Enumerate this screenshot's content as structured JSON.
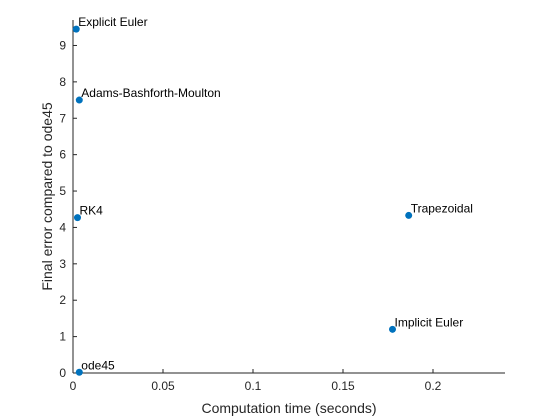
{
  "chart_data": {
    "type": "scatter",
    "title": "",
    "xlabel": "Computation time (seconds)",
    "ylabel": "Final error compared to ode45",
    "xlim": [
      0,
      0.24
    ],
    "ylim": [
      0,
      9.7
    ],
    "x_ticks": [
      0,
      0.05,
      0.1,
      0.15,
      0.2
    ],
    "x_tick_labels": [
      "0",
      "0.05",
      "0.1",
      "0.15",
      "0.2"
    ],
    "y_ticks": [
      0,
      1,
      2,
      3,
      4,
      5,
      6,
      7,
      8,
      9
    ],
    "y_tick_labels": [
      "0",
      "1",
      "2",
      "3",
      "4",
      "5",
      "6",
      "7",
      "8",
      "9"
    ],
    "grid": false,
    "marker_color": "#0072BD",
    "points": [
      {
        "label": "Explicit Euler",
        "x": 0.0018,
        "y": 9.45
      },
      {
        "label": "Adams-Bashforth-Moulton",
        "x": 0.0035,
        "y": 7.5
      },
      {
        "label": "RK4",
        "x": 0.0025,
        "y": 4.27
      },
      {
        "label": "Trapezoidal",
        "x": 0.1865,
        "y": 4.33
      },
      {
        "label": "Implicit Euler",
        "x": 0.1775,
        "y": 1.2
      },
      {
        "label": "ode45",
        "x": 0.0035,
        "y": 0.02
      }
    ]
  }
}
